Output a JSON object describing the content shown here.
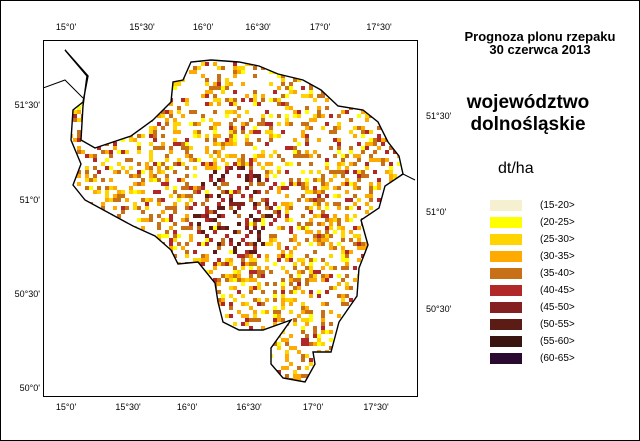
{
  "map": {
    "title_line1": "Prognoza plonu rzepaku",
    "title_line2": "30 czerwca 2013",
    "region_line1": "województwo",
    "region_line2": "dolnośląskie",
    "unit": "dt/ha",
    "axes": {
      "top": [
        "15°0'",
        "15°30'",
        "16°0'",
        "16°30'",
        "17°0'",
        "17°30'"
      ],
      "bottom": [
        "15°0'",
        "15°30'",
        "16°0'",
        "16°30'",
        "17°0'",
        "17°30'"
      ],
      "left": [
        "51°30'",
        "51°0'",
        "50°30'",
        "50°0'"
      ],
      "right": [
        "51°30'",
        "51°0'",
        "50°30'"
      ]
    }
  },
  "legend": [
    {
      "label": "(15-20>",
      "color": "#f4f0d0"
    },
    {
      "label": "(20-25>",
      "color": "#ffff00"
    },
    {
      "label": "(25-30>",
      "color": "#ffd400"
    },
    {
      "label": "(30-35>",
      "color": "#ffaa00"
    },
    {
      "label": "(35-40>",
      "color": "#c87018"
    },
    {
      "label": "(40-45>",
      "color": "#b02828"
    },
    {
      "label": "(45-50>",
      "color": "#842020"
    },
    {
      "label": "(50-55>",
      "color": "#5a1c14"
    },
    {
      "label": "(55-60>",
      "color": "#3a1410"
    },
    {
      "label": "(60-65>",
      "color": "#2a0a30"
    }
  ]
}
